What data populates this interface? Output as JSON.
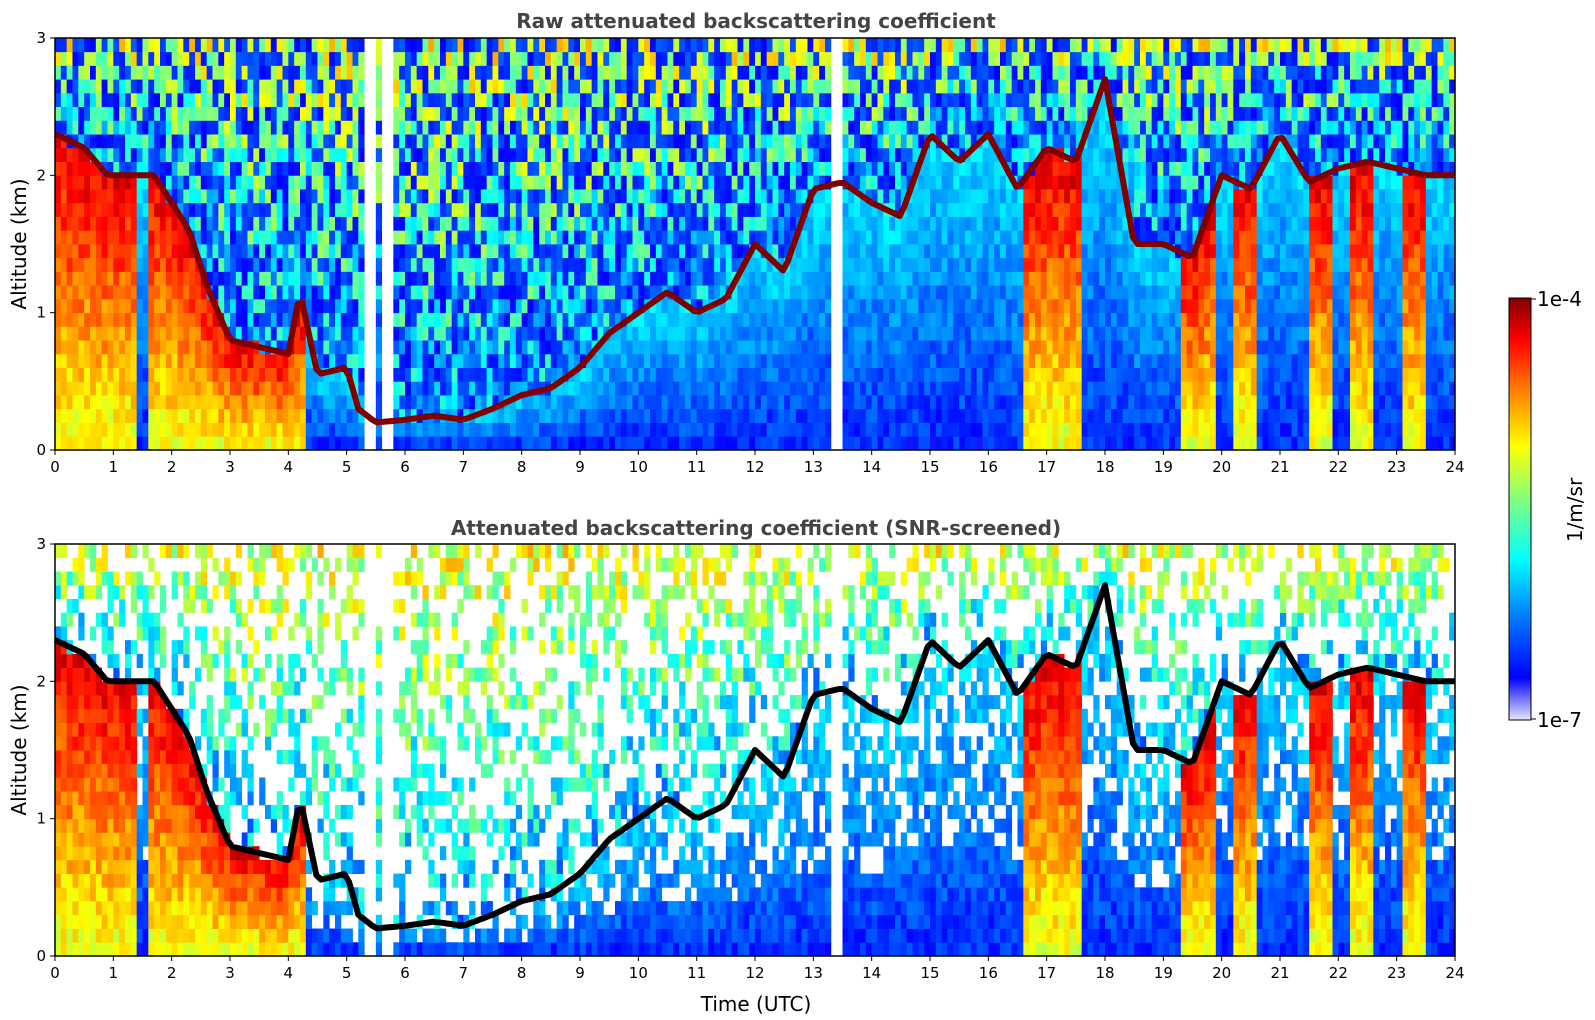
{
  "chart_data": [
    {
      "type": "heatmap",
      "title": "Raw attenuated backscattering coefficient",
      "xlabel": "",
      "ylabel": "Altitude (km)",
      "xlim": [
        0,
        24
      ],
      "ylim": [
        0,
        3
      ],
      "xticks": [
        "0",
        "1",
        "2",
        "3",
        "4",
        "5",
        "6",
        "7",
        "8",
        "9",
        "10",
        "11",
        "12",
        "13",
        "14",
        "15",
        "16",
        "17",
        "18",
        "19",
        "20",
        "21",
        "22",
        "23",
        "24"
      ],
      "yticks": [
        "0",
        "1",
        "2",
        "3"
      ],
      "screening": "none",
      "cloud_base_km": [
        [
          0.0,
          2.3
        ],
        [
          0.5,
          2.2
        ],
        [
          0.9,
          2.0
        ],
        [
          1.7,
          2.0
        ],
        [
          2.0,
          1.8
        ],
        [
          2.3,
          1.6
        ],
        [
          2.6,
          1.2
        ],
        [
          3.0,
          0.8
        ],
        [
          3.5,
          0.75
        ],
        [
          4.0,
          0.7
        ],
        [
          4.2,
          1.15
        ],
        [
          4.5,
          0.55
        ],
        [
          5.0,
          0.6
        ],
        [
          5.2,
          0.3
        ],
        [
          5.5,
          0.2
        ],
        [
          6.0,
          0.22
        ],
        [
          6.5,
          0.25
        ],
        [
          7.0,
          0.22
        ],
        [
          7.5,
          0.3
        ],
        [
          8.0,
          0.4
        ],
        [
          8.5,
          0.45
        ],
        [
          9.0,
          0.6
        ],
        [
          9.5,
          0.85
        ],
        [
          10.0,
          1.0
        ],
        [
          10.5,
          1.15
        ],
        [
          11.0,
          1.0
        ],
        [
          11.5,
          1.1
        ],
        [
          12.0,
          1.5
        ],
        [
          12.5,
          1.3
        ],
        [
          13.0,
          1.9
        ],
        [
          13.5,
          1.95
        ],
        [
          14.0,
          1.8
        ],
        [
          14.5,
          1.7
        ],
        [
          15.0,
          2.3
        ],
        [
          15.5,
          2.1
        ],
        [
          16.0,
          2.3
        ],
        [
          16.5,
          1.9
        ],
        [
          17.0,
          2.2
        ],
        [
          17.5,
          2.1
        ],
        [
          18.0,
          2.7
        ],
        [
          18.5,
          1.5
        ],
        [
          19.0,
          1.5
        ],
        [
          19.5,
          1.4
        ],
        [
          20.0,
          2.0
        ],
        [
          20.5,
          1.9
        ],
        [
          21.0,
          2.3
        ],
        [
          21.5,
          1.95
        ],
        [
          22.0,
          2.05
        ],
        [
          22.5,
          2.1
        ],
        [
          23.0,
          2.05
        ],
        [
          23.5,
          2.0
        ],
        [
          24.0,
          2.0
        ]
      ],
      "precipitation_columns_utc": [
        [
          0.0,
          1.4
        ],
        [
          1.6,
          2.6
        ],
        [
          2.6,
          4.3
        ],
        [
          16.65,
          17.2
        ],
        [
          17.2,
          17.6
        ],
        [
          19.3,
          19.9
        ],
        [
          20.2,
          20.6
        ],
        [
          21.5,
          21.9
        ],
        [
          22.2,
          22.6
        ],
        [
          23.1,
          23.5
        ]
      ],
      "data_gaps_utc": [
        [
          5.32,
          5.45
        ],
        [
          5.62,
          5.8
        ],
        [
          13.05,
          13.15
        ],
        [
          13.3,
          13.45
        ]
      ]
    },
    {
      "type": "heatmap",
      "title": "Attenuated backscattering coefficient (SNR-screened)",
      "xlabel": "Time (UTC)",
      "ylabel": "Altitude (km)",
      "xlim": [
        0,
        24
      ],
      "ylim": [
        0,
        3
      ],
      "xticks": [
        "0",
        "1",
        "2",
        "3",
        "4",
        "5",
        "6",
        "7",
        "8",
        "9",
        "10",
        "11",
        "12",
        "13",
        "14",
        "15",
        "16",
        "17",
        "18",
        "19",
        "20",
        "21",
        "22",
        "23",
        "24"
      ],
      "yticks": [
        "0",
        "1",
        "2",
        "3"
      ],
      "screening": "SNR",
      "saturated_color": "#000000",
      "cloud_base_km": [
        [
          0.0,
          2.3
        ],
        [
          0.5,
          2.2
        ],
        [
          0.9,
          2.0
        ],
        [
          1.7,
          2.0
        ],
        [
          2.0,
          1.8
        ],
        [
          2.3,
          1.6
        ],
        [
          2.6,
          1.2
        ],
        [
          3.0,
          0.8
        ],
        [
          3.5,
          0.75
        ],
        [
          4.0,
          0.7
        ],
        [
          4.2,
          1.15
        ],
        [
          4.5,
          0.55
        ],
        [
          5.0,
          0.6
        ],
        [
          5.2,
          0.3
        ],
        [
          5.5,
          0.2
        ],
        [
          6.0,
          0.22
        ],
        [
          6.5,
          0.25
        ],
        [
          7.0,
          0.22
        ],
        [
          7.5,
          0.3
        ],
        [
          8.0,
          0.4
        ],
        [
          8.5,
          0.45
        ],
        [
          9.0,
          0.6
        ],
        [
          9.5,
          0.85
        ],
        [
          10.0,
          1.0
        ],
        [
          10.5,
          1.15
        ],
        [
          11.0,
          1.0
        ],
        [
          11.5,
          1.1
        ],
        [
          12.0,
          1.5
        ],
        [
          12.5,
          1.3
        ],
        [
          13.0,
          1.9
        ],
        [
          13.5,
          1.95
        ],
        [
          14.0,
          1.8
        ],
        [
          14.5,
          1.7
        ],
        [
          15.0,
          2.3
        ],
        [
          15.5,
          2.1
        ],
        [
          16.0,
          2.3
        ],
        [
          16.5,
          1.9
        ],
        [
          17.0,
          2.2
        ],
        [
          17.5,
          2.1
        ],
        [
          18.0,
          2.7
        ],
        [
          18.5,
          1.5
        ],
        [
          19.0,
          1.5
        ],
        [
          19.5,
          1.4
        ],
        [
          20.0,
          2.0
        ],
        [
          20.5,
          1.9
        ],
        [
          21.0,
          2.3
        ],
        [
          21.5,
          1.95
        ],
        [
          22.0,
          2.05
        ],
        [
          22.5,
          2.1
        ],
        [
          23.0,
          2.05
        ],
        [
          23.5,
          2.0
        ],
        [
          24.0,
          2.0
        ]
      ],
      "precipitation_columns_utc": [
        [
          0.0,
          1.4
        ],
        [
          1.6,
          2.6
        ],
        [
          2.6,
          4.3
        ],
        [
          16.65,
          17.2
        ],
        [
          17.2,
          17.6
        ],
        [
          19.3,
          19.9
        ],
        [
          20.2,
          20.6
        ],
        [
          21.5,
          21.9
        ],
        [
          22.2,
          22.6
        ],
        [
          23.1,
          23.5
        ]
      ],
      "data_gaps_utc": [
        [
          5.32,
          5.45
        ],
        [
          5.62,
          5.8
        ],
        [
          13.05,
          13.15
        ],
        [
          13.3,
          13.45
        ]
      ]
    }
  ],
  "colorbar": {
    "label": "1/m/sr",
    "max_label": "1e-4",
    "min_label": "1e-7",
    "scale": "log",
    "range": [
      1e-07,
      0.0001
    ],
    "colormap": "jet",
    "colors": [
      "#E6E6FA",
      "#0000FF",
      "#0080FF",
      "#00FFFF",
      "#80FF80",
      "#FFFF00",
      "#FF8000",
      "#FF0000",
      "#800000"
    ]
  }
}
